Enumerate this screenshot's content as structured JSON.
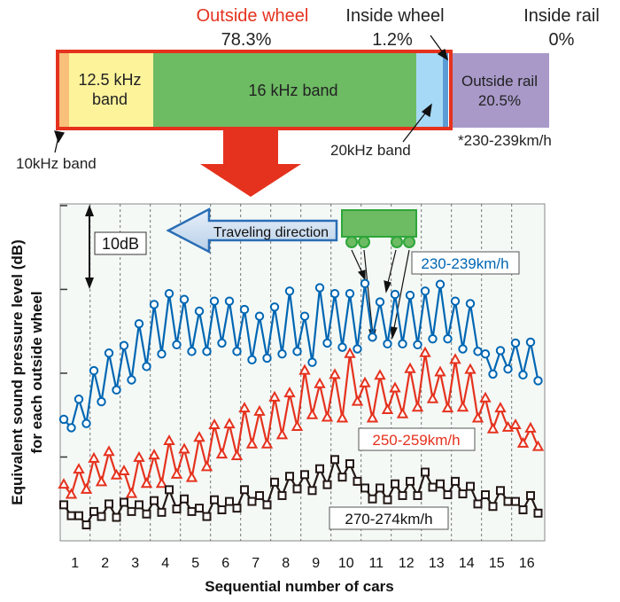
{
  "breakdown": {
    "outside_wheel_label": "Outside wheel",
    "outside_wheel_pct": "78.3%",
    "inside_wheel_label": "Inside wheel",
    "inside_wheel_pct": "1.2%",
    "inside_rail_label": "Inside rail",
    "inside_rail_pct": "0%",
    "outside_rail_label": "Outside rail",
    "outside_rail_pct": "20.5%",
    "band_10k": "10kHz band",
    "band_12_5k_line1": "12.5 kHz",
    "band_12_5k_line2": "band",
    "band_16k": "16 kHz band",
    "band_20k": "20kHz band",
    "speed_note": "*230-239km/h",
    "colors": {
      "band_10k": "#f8c07a",
      "band_12_5k": "#fdf39b",
      "band_16k": "#6dbb63",
      "band_20k": "#a6d9f5",
      "inside_wheel": "#5b9bd5",
      "outside_rail": "#a899c9",
      "outline": "#e5321e"
    }
  },
  "chart_data": {
    "type": "line",
    "title": "",
    "xlabel": "Sequential number of cars",
    "ylabel_line1": "Equivalent sound pressure level (dB)",
    "ylabel_line2": "for each outside wheel",
    "x_ticks": [
      "1",
      "2",
      "3",
      "4",
      "5",
      "6",
      "7",
      "8",
      "9",
      "10",
      "11",
      "12",
      "13",
      "14",
      "15",
      "16"
    ],
    "points_per_car": 4,
    "y_unit": "relative dB",
    "ylim": [
      0,
      40.2
    ],
    "scale_bar_label": "10dB",
    "scale_bar_db": 10,
    "direction_label": "Traveling direction",
    "grid": "dashed vertical lines between cars",
    "series": [
      {
        "name": "230-239km/h",
        "color": "#0066b3",
        "marker": "circle",
        "values": [
          14.5,
          13.5,
          16.9,
          14.0,
          20.3,
          16.6,
          22.4,
          18.0,
          23.3,
          19.2,
          25.9,
          20.8,
          28.2,
          22.3,
          29.5,
          23.4,
          28.8,
          22.6,
          27.4,
          22.6,
          28.6,
          23.6,
          28.6,
          22.6,
          27.6,
          21.6,
          26.8,
          21.8,
          27.9,
          22.3,
          29.8,
          22.6,
          26.8,
          21.3,
          30.2,
          23.6,
          29.5,
          23.1,
          29.5,
          22.9,
          30.7,
          24.3,
          28.5,
          23.5,
          29.4,
          23.5,
          29.3,
          23.4,
          29.8,
          24.1,
          30.6,
          24.1,
          28.6,
          22.9,
          28.3,
          22.6,
          22.3,
          19.9,
          22.7,
          20.5,
          23.6,
          19.8,
          23.7,
          19.1
        ]
      },
      {
        "name": "250-259km/h",
        "color": "#e5321e",
        "marker": "triangle",
        "values": [
          6.7,
          5.5,
          8.5,
          6.1,
          9.8,
          7.0,
          10.6,
          7.8,
          8.3,
          5.6,
          9.9,
          6.8,
          10.2,
          6.8,
          11.9,
          7.9,
          10.9,
          7.5,
          12.3,
          8.8,
          13.8,
          10.3,
          13.9,
          10.1,
          15.8,
          11.5,
          15.4,
          11.5,
          17.1,
          12.6,
          17.6,
          13.6,
          20.3,
          15.0,
          18.7,
          14.7,
          19.8,
          14.6,
          22.3,
          16.6,
          18.8,
          14.6,
          19.7,
          15.6,
          18.2,
          15.1,
          20.5,
          15.9,
          22.4,
          16.9,
          20.1,
          15.8,
          21.6,
          15.9,
          20.4,
          14.6,
          17.0,
          13.3,
          15.8,
          13.5,
          13.8,
          11.6,
          13.4,
          11.2
        ]
      },
      {
        "name": "270-274km/h",
        "color": "#231815",
        "marker": "square",
        "values": [
          4.3,
          3.0,
          3.0,
          1.9,
          3.5,
          2.9,
          4.4,
          2.8,
          4.6,
          3.5,
          4.3,
          3.2,
          4.8,
          3.4,
          6.1,
          3.8,
          5.0,
          3.5,
          3.9,
          2.9,
          4.9,
          3.7,
          4.7,
          3.9,
          6.1,
          4.7,
          5.4,
          4.3,
          7.0,
          5.4,
          7.7,
          6.2,
          7.9,
          6.0,
          8.6,
          6.7,
          9.7,
          7.6,
          9.2,
          7.1,
          6.3,
          5.0,
          6.3,
          4.9,
          6.8,
          5.4,
          7.1,
          5.4,
          8.2,
          6.4,
          6.8,
          5.5,
          7.1,
          5.6,
          6.5,
          4.4,
          5.5,
          4.1,
          6.0,
          4.7,
          4.7,
          3.7,
          5.4,
          3.3
        ]
      }
    ]
  }
}
